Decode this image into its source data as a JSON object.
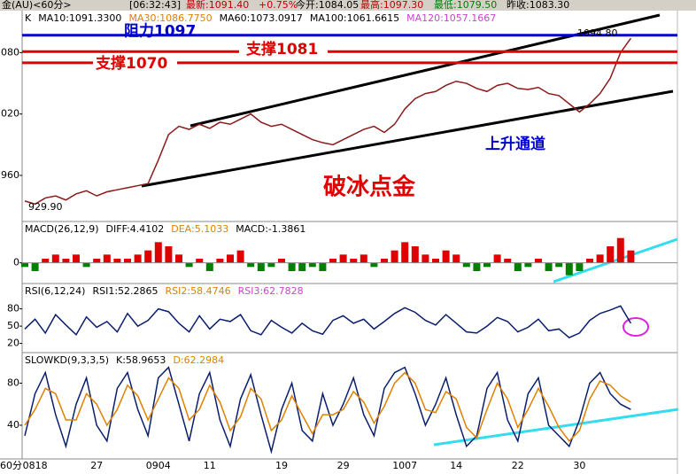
{
  "header": {
    "symbol": "金(AU)<60分>",
    "time": "[06:32:43]",
    "latest": "最新:1091.40",
    "change": "+0.75%",
    "open": "今开:1084.05",
    "high": "最高:1097.30",
    "low": "最低:1079.50",
    "prev_close": "昨收:1083.30",
    "period": "60分"
  },
  "chart_data": [
    {
      "type": "line",
      "legend_texts": [
        {
          "text": "K",
          "color": "#000000"
        },
        {
          "text": "MA10:1091.3300",
          "color": "#000000"
        },
        {
          "text": "MA30:1086.7750",
          "color": "#e08000"
        },
        {
          "text": "MA60:1073.0917",
          "color": "#000000"
        },
        {
          "text": "MA100:1061.6615",
          "color": "#000000"
        },
        {
          "text": "MA120:1057.1667",
          "color": "#cc44cc"
        }
      ],
      "categories": [
        null,
        "0818",
        null,
        null,
        null,
        null,
        null,
        "27",
        null,
        null,
        null,
        null,
        null,
        "0904",
        null,
        null,
        null,
        null,
        "11",
        null,
        null,
        null,
        null,
        null,
        null,
        "19",
        null,
        null,
        null,
        null,
        null,
        "29",
        null,
        null,
        null,
        null,
        null,
        "1007",
        null,
        null,
        null,
        null,
        "14",
        null,
        null,
        null,
        null,
        null,
        "22",
        null,
        null,
        null,
        null,
        null,
        "30",
        null,
        null,
        null,
        null,
        null
      ],
      "series": [
        {
          "color": "#8b1a1a",
          "values": [
            935,
            932,
            938,
            940,
            936,
            942,
            945,
            940,
            944,
            946,
            948,
            950,
            952,
            975,
            1000,
            1008,
            1005,
            1010,
            1006,
            1012,
            1010,
            1015,
            1020,
            1012,
            1008,
            1010,
            1005,
            1000,
            995,
            992,
            990,
            995,
            1000,
            1005,
            1008,
            1002,
            1010,
            1025,
            1035,
            1040,
            1042,
            1048,
            1052,
            1050,
            1045,
            1042,
            1048,
            1050,
            1045,
            1044,
            1046,
            1040,
            1038,
            1030,
            1022,
            1030,
            1040,
            1055,
            1080,
            1094
          ]
        }
      ],
      "ylim": [
        915,
        1121
      ],
      "yticks": [
        960,
        1020,
        1080
      ],
      "annotations": [
        {
          "label": "阻力1097",
          "value": 1097,
          "color": "#0000cc"
        },
        {
          "label": "支撑1081",
          "value": 1081,
          "color": "#e00000"
        },
        {
          "label": "支撑1070",
          "value": 1070,
          "color": "#e00000"
        }
      ],
      "notes": [
        {
          "text": "上升通道",
          "color": "#0000cc"
        },
        {
          "text": "破冰点金",
          "color": "#e00000"
        },
        {
          "text": "929.90",
          "color": "#000000"
        },
        {
          "text": "1094.80",
          "color": "#000000"
        }
      ]
    },
    {
      "type": "bar",
      "legend_texts": [
        {
          "text": "MACD(26,12,9)",
          "color": "#000000"
        },
        {
          "text": "DIFF:4.4102",
          "color": "#000000"
        },
        {
          "text": "DEA:5.1033",
          "color": "#e08000"
        },
        {
          "text": "MACD:-1.3861",
          "color": "#000000"
        }
      ],
      "up_color": "#e00000",
      "down_color": "#008000",
      "values": [
        -1,
        -2,
        1,
        2,
        1,
        2,
        -1,
        1,
        2,
        1,
        1,
        2,
        3,
        5,
        4,
        2,
        -1,
        1,
        -2,
        1,
        2,
        3,
        -1,
        -2,
        -1,
        1,
        -2,
        -2,
        -1,
        -2,
        1,
        2,
        1,
        2,
        -1,
        1,
        3,
        5,
        4,
        2,
        1,
        3,
        2,
        -1,
        -2,
        -1,
        2,
        1,
        -2,
        -1,
        1,
        -2,
        -1,
        -3,
        -2,
        1,
        2,
        4,
        6,
        3
      ],
      "ylim": [
        -5,
        10
      ],
      "yticks": [
        0
      ]
    },
    {
      "type": "line",
      "legend_texts": [
        {
          "text": "RSI(6,12,24)",
          "color": "#000000"
        },
        {
          "text": "RSI1:52.2865",
          "color": "#000000"
        },
        {
          "text": "RSI2:58.4746",
          "color": "#e08000"
        },
        {
          "text": "RSI3:62.7828",
          "color": "#cc44cc"
        }
      ],
      "series": [
        {
          "color": "#0a1e6e",
          "values": [
            45,
            62,
            38,
            70,
            52,
            35,
            66,
            48,
            58,
            40,
            72,
            50,
            60,
            80,
            75,
            55,
            40,
            68,
            45,
            62,
            58,
            70,
            42,
            35,
            60,
            48,
            38,
            55,
            42,
            36,
            60,
            68,
            55,
            62,
            45,
            58,
            72,
            82,
            74,
            60,
            52,
            70,
            55,
            40,
            38,
            50,
            65,
            58,
            40,
            48,
            62,
            42,
            45,
            30,
            38,
            60,
            72,
            78,
            85,
            55
          ]
        }
      ],
      "ylim": [
        4,
        124
      ],
      "yticks": [
        20,
        50,
        80
      ]
    },
    {
      "type": "line",
      "legend_texts": [
        {
          "text": "SLOWKD(9,3,3,5)",
          "color": "#000000"
        },
        {
          "text": "K:58.9653",
          "color": "#000000"
        },
        {
          "text": "D:62.2984",
          "color": "#e08000"
        }
      ],
      "series": [
        {
          "color": "#0a1e6e",
          "values": [
            30,
            70,
            90,
            50,
            20,
            60,
            85,
            40,
            25,
            75,
            90,
            55,
            30,
            85,
            95,
            60,
            25,
            70,
            90,
            45,
            20,
            65,
            88,
            50,
            15,
            55,
            80,
            35,
            25,
            70,
            40,
            60,
            85,
            50,
            30,
            75,
            90,
            95,
            70,
            40,
            60,
            85,
            50,
            20,
            30,
            75,
            90,
            45,
            25,
            70,
            85,
            40,
            30,
            20,
            45,
            80,
            90,
            70,
            60,
            55
          ]
        },
        {
          "color": "#e08000",
          "values": [
            40,
            55,
            75,
            70,
            45,
            45,
            70,
            60,
            40,
            55,
            78,
            68,
            45,
            65,
            85,
            75,
            45,
            55,
            78,
            62,
            35,
            48,
            75,
            65,
            35,
            45,
            68,
            50,
            32,
            50,
            50,
            55,
            72,
            62,
            42,
            58,
            80,
            90,
            80,
            55,
            52,
            72,
            65,
            38,
            28,
            55,
            80,
            65,
            38,
            55,
            75,
            58,
            38,
            25,
            35,
            65,
            82,
            78,
            68,
            62
          ]
        }
      ],
      "ylim": [
        8,
        109
      ],
      "yticks": [
        40,
        80
      ]
    }
  ]
}
